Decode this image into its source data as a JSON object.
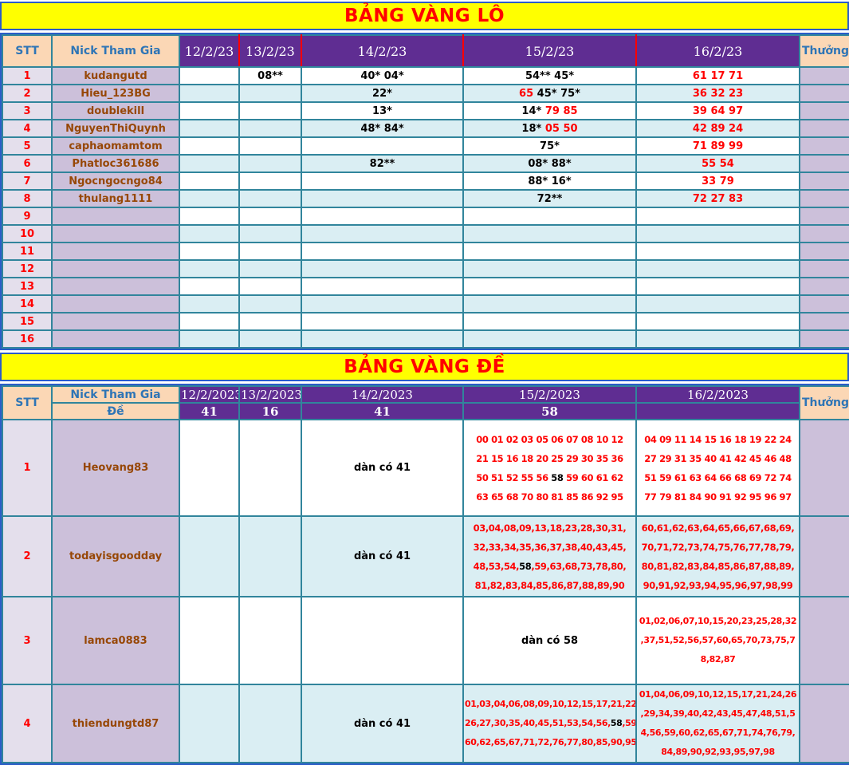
{
  "colors": {
    "banner_bg": "#FFFF00",
    "banner_title": "#FF0000",
    "header_purple": "#5F2D92",
    "header_peach": "#FBD7B5",
    "header_text_blue": "#2E75B6",
    "border_teal": "#31859C",
    "border_blue": "#2B5CC8",
    "row_alt_blue": "#DAEEF3",
    "stt_bg": "#E4DFEC",
    "nick_bg": "#CCC0DA",
    "nick_text": "#974706",
    "number_red": "#FF0000",
    "number_black": "#000000"
  },
  "banners": {
    "lo": "BẢNG VÀNG LÔ",
    "de": "BẢNG VÀNG ĐỀ"
  },
  "table1": {
    "headers": {
      "stt": "STT",
      "nick": "Nick Tham Gia",
      "d1": "12/2/23",
      "d2": "13/2/23",
      "d3": "14/2/23",
      "d4": "15/2/23",
      "d5": "16/2/23",
      "reward": "Thưởng"
    },
    "rows": [
      {
        "stt": "1",
        "nick": "kudangutd",
        "d2": "08**",
        "d3": "40* 04*",
        "d4": "54** 45*",
        "d5": "61 17 71"
      },
      {
        "stt": "2",
        "nick": "Hieu_123BG",
        "d3": "22*",
        "d4": [
          [
            {
              "t": "65 ",
              "c": "#FF0000"
            },
            "45* 75*"
          ]
        ],
        "d5": "36 32 23"
      },
      {
        "stt": "3",
        "nick": "doublekill",
        "d3": "13*",
        "d4": [
          [
            "14* ",
            {
              "t": "79 85",
              "c": "#FF0000"
            }
          ]
        ],
        "d5": "39 64 97"
      },
      {
        "stt": "4",
        "nick": "NguyenThiQuynh",
        "d3": "48* 84*",
        "d4": [
          [
            "18* ",
            {
              "t": "05 50",
              "c": "#FF0000"
            }
          ]
        ],
        "d5": "42 89 24"
      },
      {
        "stt": "5",
        "nick": "caphaomamtom",
        "d4": "75*",
        "d5": "71 89 99"
      },
      {
        "stt": "6",
        "nick": "Phatloc361686",
        "d3": "82**",
        "d4": "08* 88*",
        "d5": "55 54"
      },
      {
        "stt": "7",
        "nick": "Ngocngocngo84",
        "d4": "88* 16*",
        "d5": "33 79"
      },
      {
        "stt": "8",
        "nick": "thulang1111",
        "d4": "72**",
        "d5": "72 27 83"
      },
      {
        "stt": "9"
      },
      {
        "stt": "10"
      },
      {
        "stt": "11"
      },
      {
        "stt": "12"
      },
      {
        "stt": "13"
      },
      {
        "stt": "14"
      },
      {
        "stt": "15"
      },
      {
        "stt": "16"
      }
    ]
  },
  "table2": {
    "headers": {
      "stt": "STT",
      "nick": "Nick Tham Gia",
      "de": "Đề",
      "d1": "12/2/2023",
      "d2": "13/2/2023",
      "d3": "14/2/2023",
      "d4": "15/2/2023",
      "d5": "16/2/2023",
      "reward": "Thưởng"
    },
    "de_values": [
      "41",
      "16",
      "41",
      "58",
      ""
    ],
    "rows": [
      {
        "stt": "1",
        "nick": "Heovang83",
        "d3": "dàn có 41",
        "d4": [
          [
            "00 01 02 03 05 06 07 08 10 12"
          ],
          [
            "21 15 16 18 20 25 29 30 35 36"
          ],
          [
            "50 51 52 55 56 ",
            {
              "t": "58",
              "c": "#000000"
            },
            " 59 60 61 62"
          ],
          [
            "63 65 68 70 80 81 85 86 92 95"
          ]
        ],
        "d5": [
          [
            "04 09 11 14 15 16 18 19 22 24"
          ],
          [
            "27 29 31 35 40 41 42 45 46 48"
          ],
          [
            "51 59 61 63 64 66 68 69 72 74"
          ],
          [
            "77 79 81 84 90 91 92 95 96 97"
          ]
        ]
      },
      {
        "stt": "2",
        "nick": "todayisgoodday",
        "d3": "dàn có 41",
        "d4": [
          [
            "03,04,08,09,13,18,23,28,30,31,"
          ],
          [
            "32,33,34,35,36,37,38,40,43,45,"
          ],
          [
            "48,53,54,",
            {
              "t": "58",
              "c": "#000000"
            },
            ",59,63,68,73,78,80,"
          ],
          [
            "81,82,83,84,85,86,87,88,89,90"
          ]
        ],
        "d5": [
          [
            "60,61,62,63,64,65,66,67,68,69,"
          ],
          [
            "70,71,72,73,74,75,76,77,78,79,"
          ],
          [
            "80,81,82,83,84,85,86,87,88,89,"
          ],
          [
            "90,91,92,93,94,95,96,97,98,99"
          ]
        ]
      },
      {
        "stt": "3",
        "nick": "lamca0883",
        "d4": "dàn có 58",
        "d5": [
          [
            "01,02,06,07,10,15,20,23,25,28,32"
          ],
          [
            ",37,51,52,56,57,60,65,70,73,75,7"
          ],
          [
            "8,82,87"
          ]
        ]
      },
      {
        "stt": "4",
        "nick": "thiendungtd87",
        "d3": "dàn có 41",
        "d4": [
          [
            "01,03,04,06,08,09,10,12,15,17,21,22,"
          ],
          [
            "26,27,30,35,40,45,51,53,54,56,",
            {
              "t": "58",
              "c": "#000000"
            },
            ",59,"
          ],
          [
            "60,62,65,67,71,72,76,77,80,85,90,95"
          ]
        ],
        "d5": [
          [
            "01,04,06,09,10,12,15,17,21,24,26"
          ],
          [
            ",29,34,39,40,42,43,45,47,48,51,5"
          ],
          [
            "4,56,59,60,62,65,67,71,74,76,79,"
          ],
          [
            "84,89,90,92,93,95,97,98"
          ]
        ]
      }
    ]
  }
}
